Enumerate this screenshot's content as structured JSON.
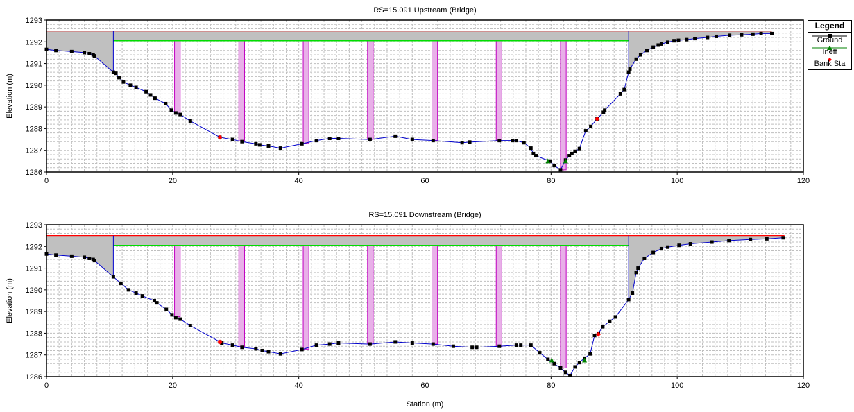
{
  "chart_data": [
    {
      "type": "line",
      "title": "RS=15.091  Upstream  (Bridge)",
      "xlabel": "",
      "ylabel": "Elevation (m)",
      "xlim": [
        0,
        120
      ],
      "ylim": [
        1286,
        1293
      ],
      "x_ticks": [
        "0",
        "20",
        "40",
        "60",
        "80",
        "100",
        "120"
      ],
      "y_ticks": [
        "1286",
        "1287",
        "1288",
        "1289",
        "1290",
        "1291",
        "1292",
        "1293"
      ],
      "grid": true,
      "series": [
        {
          "name": "Ground",
          "color": "#0000cc",
          "points": [
            [
              0,
              1291.65
            ],
            [
              1.5,
              1291.6
            ],
            [
              4,
              1291.55
            ],
            [
              6,
              1291.5
            ],
            [
              6.8,
              1291.45
            ],
            [
              7.4,
              1291.4
            ],
            [
              7.6,
              1291.35
            ],
            [
              10.6,
              1290.6
            ],
            [
              11,
              1290.55
            ],
            [
              11.5,
              1290.35
            ],
            [
              12.2,
              1290.15
            ],
            [
              13.3,
              1290.0
            ],
            [
              14.2,
              1289.9
            ],
            [
              15.8,
              1289.7
            ],
            [
              16.5,
              1289.55
            ],
            [
              17.2,
              1289.4
            ],
            [
              18.9,
              1289.15
            ],
            [
              19.8,
              1288.85
            ],
            [
              20.5,
              1288.72
            ],
            [
              21.2,
              1288.65
            ],
            [
              22.8,
              1288.35
            ],
            [
              27.5,
              1287.6
            ],
            [
              29.5,
              1287.5
            ],
            [
              31,
              1287.4
            ],
            [
              33.2,
              1287.3
            ],
            [
              33.8,
              1287.25
            ],
            [
              35.2,
              1287.2
            ],
            [
              37.1,
              1287.1
            ],
            [
              40.5,
              1287.3
            ],
            [
              42.8,
              1287.45
            ],
            [
              44.9,
              1287.55
            ],
            [
              46.3,
              1287.55
            ],
            [
              51.3,
              1287.5
            ],
            [
              55.3,
              1287.65
            ],
            [
              58,
              1287.5
            ],
            [
              61.3,
              1287.45
            ],
            [
              65.9,
              1287.35
            ],
            [
              67.1,
              1287.38
            ],
            [
              71.8,
              1287.45
            ],
            [
              73.9,
              1287.45
            ],
            [
              74.5,
              1287.45
            ],
            [
              75.7,
              1287.35
            ],
            [
              76.8,
              1287.1
            ],
            [
              77.2,
              1286.85
            ],
            [
              77.6,
              1286.75
            ],
            [
              79.8,
              1286.5
            ],
            [
              80.5,
              1286.3
            ],
            [
              81.5,
              1286.1
            ],
            [
              82.3,
              1286.55
            ],
            [
              82.9,
              1286.75
            ],
            [
              83.3,
              1286.85
            ],
            [
              83.8,
              1286.95
            ],
            [
              84.5,
              1287.08
            ],
            [
              85.5,
              1287.9
            ],
            [
              86.3,
              1288.1
            ],
            [
              87.3,
              1288.45
            ],
            [
              88.3,
              1288.75
            ],
            [
              88.5,
              1288.85
            ],
            [
              91,
              1289.6
            ],
            [
              91.6,
              1289.8
            ],
            [
              92.3,
              1290.6
            ],
            [
              92.5,
              1290.75
            ],
            [
              93.5,
              1291.2
            ],
            [
              94.2,
              1291.4
            ],
            [
              95.2,
              1291.6
            ],
            [
              96.2,
              1291.75
            ],
            [
              97,
              1291.85
            ],
            [
              97.5,
              1291.9
            ],
            [
              98.5,
              1291.98
            ],
            [
              99.5,
              1292.05
            ],
            [
              100.2,
              1292.07
            ],
            [
              101.5,
              1292.1
            ],
            [
              102.8,
              1292.15
            ],
            [
              104.8,
              1292.2
            ],
            [
              106.2,
              1292.25
            ],
            [
              108.3,
              1292.3
            ],
            [
              110.2,
              1292.32
            ],
            [
              112,
              1292.35
            ],
            [
              113.3,
              1292.38
            ],
            [
              115,
              1292.38
            ]
          ]
        },
        {
          "name": "Ineff",
          "color": "#00aa00",
          "points": [
            [
              79.5,
              1286.5
            ],
            [
              82.3,
              1286.5
            ]
          ]
        },
        {
          "name": "Bank Sta",
          "color": "#ff0000",
          "points": [
            [
              27.5,
              1287.6
            ],
            [
              87.3,
              1288.45
            ]
          ]
        }
      ],
      "deck": {
        "left": 10.6,
        "right": 92.3,
        "low_chord": 1292.05,
        "high_chord": 1292.5,
        "x_start": 0,
        "x_end": 115
      },
      "piers": [
        [
          20.3,
          21.2
        ],
        [
          30.5,
          31.4
        ],
        [
          40.7,
          41.6
        ],
        [
          50.9,
          51.8
        ],
        [
          61.1,
          62.0
        ],
        [
          71.3,
          72.2
        ],
        [
          81.5,
          82.4
        ]
      ]
    },
    {
      "type": "line",
      "title": "RS=15.091  Downstream  (Bridge)",
      "xlabel": "Station (m)",
      "ylabel": "Elevation (m)",
      "xlim": [
        0,
        120
      ],
      "ylim": [
        1286,
        1293
      ],
      "x_ticks": [
        "0",
        "20",
        "40",
        "60",
        "80",
        "100",
        "120"
      ],
      "y_ticks": [
        "1286",
        "1287",
        "1288",
        "1289",
        "1290",
        "1291",
        "1292",
        "1293"
      ],
      "grid": true,
      "series": [
        {
          "name": "Ground",
          "color": "#0000cc",
          "points": [
            [
              0,
              1291.65
            ],
            [
              1.5,
              1291.6
            ],
            [
              4,
              1291.55
            ],
            [
              6,
              1291.5
            ],
            [
              6.8,
              1291.45
            ],
            [
              7.4,
              1291.4
            ],
            [
              7.6,
              1291.35
            ],
            [
              10.6,
              1290.6
            ],
            [
              11.8,
              1290.3
            ],
            [
              13,
              1290.0
            ],
            [
              14.2,
              1289.85
            ],
            [
              15.2,
              1289.72
            ],
            [
              17.1,
              1289.5
            ],
            [
              17.5,
              1289.4
            ],
            [
              19,
              1289.1
            ],
            [
              19.9,
              1288.85
            ],
            [
              20.5,
              1288.72
            ],
            [
              21.2,
              1288.65
            ],
            [
              22.8,
              1288.35
            ],
            [
              27.5,
              1287.6
            ],
            [
              27.8,
              1287.55
            ],
            [
              29.5,
              1287.45
            ],
            [
              31,
              1287.35
            ],
            [
              33.2,
              1287.28
            ],
            [
              34.2,
              1287.2
            ],
            [
              35.2,
              1287.15
            ],
            [
              37.1,
              1287.05
            ],
            [
              40.5,
              1287.25
            ],
            [
              42.8,
              1287.45
            ],
            [
              44.9,
              1287.5
            ],
            [
              46.3,
              1287.55
            ],
            [
              51.3,
              1287.5
            ],
            [
              55.3,
              1287.6
            ],
            [
              58,
              1287.55
            ],
            [
              61.3,
              1287.5
            ],
            [
              64.5,
              1287.4
            ],
            [
              67.5,
              1287.35
            ],
            [
              68.2,
              1287.35
            ],
            [
              71.8,
              1287.4
            ],
            [
              74.5,
              1287.45
            ],
            [
              75.2,
              1287.45
            ],
            [
              76.8,
              1287.45
            ],
            [
              78.2,
              1287.1
            ],
            [
              79.5,
              1286.8
            ],
            [
              80.5,
              1286.6
            ],
            [
              81.5,
              1286.4
            ],
            [
              82.3,
              1286.2
            ],
            [
              83,
              1286.05
            ],
            [
              83.8,
              1286.45
            ],
            [
              84.5,
              1286.65
            ],
            [
              85.3,
              1286.85
            ],
            [
              86.2,
              1287.05
            ],
            [
              86.9,
              1287.9
            ],
            [
              87.5,
              1288.0
            ],
            [
              88.2,
              1288.3
            ],
            [
              89.3,
              1288.55
            ],
            [
              90.2,
              1288.75
            ],
            [
              92.3,
              1289.55
            ],
            [
              92.9,
              1289.85
            ],
            [
              93.5,
              1290.8
            ],
            [
              93.8,
              1291.0
            ],
            [
              94.8,
              1291.45
            ],
            [
              96.2,
              1291.72
            ],
            [
              97.5,
              1291.9
            ],
            [
              98.5,
              1291.97
            ],
            [
              100.3,
              1292.05
            ],
            [
              102.1,
              1292.12
            ],
            [
              105.5,
              1292.2
            ],
            [
              108.2,
              1292.27
            ],
            [
              111.6,
              1292.32
            ],
            [
              114.2,
              1292.35
            ],
            [
              116.8,
              1292.4
            ]
          ]
        },
        {
          "name": "Ineff",
          "color": "#00aa00",
          "points": [
            [
              80.1,
              1286.75
            ],
            [
              85.3,
              1286.75
            ]
          ]
        },
        {
          "name": "Bank Sta",
          "color": "#ff0000",
          "points": [
            [
              27.5,
              1287.6
            ],
            [
              87.5,
              1287.95
            ]
          ]
        }
      ],
      "deck": {
        "left": 10.6,
        "right": 92.3,
        "low_chord": 1292.05,
        "high_chord": 1292.5,
        "x_start": 0,
        "x_end": 117
      },
      "piers": [
        [
          20.3,
          21.2
        ],
        [
          30.5,
          31.4
        ],
        [
          40.7,
          41.6
        ],
        [
          50.9,
          51.8
        ],
        [
          61.1,
          62.0
        ],
        [
          71.3,
          72.2
        ],
        [
          81.5,
          82.4
        ]
      ]
    }
  ],
  "legend": {
    "title": "Legend",
    "items": [
      {
        "label": "Ground",
        "color": "#000000",
        "line_color": "#000000",
        "marker": "square"
      },
      {
        "label": "Ineff",
        "color": "#008000",
        "line_color": "#008000",
        "marker": "triangle"
      },
      {
        "label": "Bank Sta",
        "color": "#ff0000",
        "line_color": "",
        "marker": "diamond"
      }
    ]
  },
  "colors": {
    "deck_fill": "#c0c0c0",
    "high_chord": "#ff0000",
    "low_chord": "#00dd00",
    "pier_fill": "#e8b0e8",
    "pier_edge": "#c000c0",
    "ground_line": "#0000cc",
    "ground_marker": "#000000",
    "grid": "#bfbfbf"
  }
}
